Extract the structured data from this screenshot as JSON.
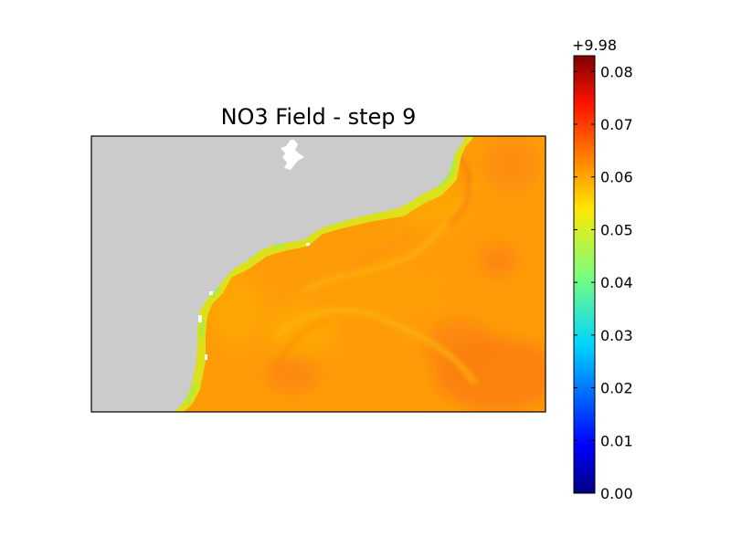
{
  "chart_data": {
    "type": "heatmap",
    "title": "NO3 Field - step 9",
    "colormap": "jet",
    "colors": {
      "land": "#cbcbcb",
      "water_base": "#fe9c08"
    },
    "colorbar": {
      "offset_label": "+9.98",
      "range": [
        0.0,
        0.083
      ],
      "ticks": [
        0.0,
        0.01,
        0.02,
        0.03,
        0.04,
        0.05,
        0.06,
        0.07,
        0.08
      ],
      "tick_labels": [
        "0.00",
        "0.01",
        "0.02",
        "0.03",
        "0.04",
        "0.05",
        "0.06",
        "0.07",
        "0.08"
      ]
    }
  }
}
